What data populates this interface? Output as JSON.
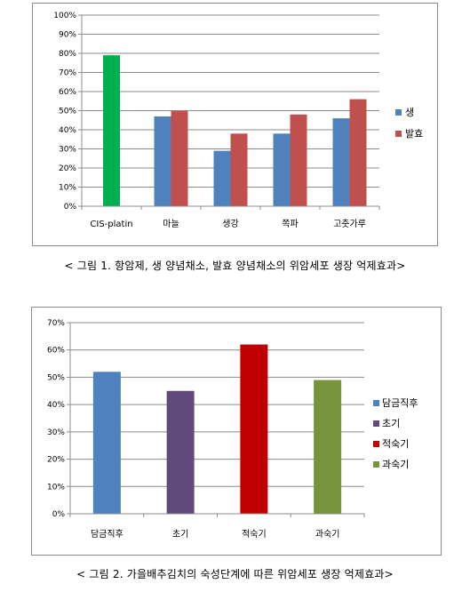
{
  "captions": {
    "figure1": "< 그림 1. 항암제, 생 양념채소, 발효 양념채소의 위암세포 생장 억제효과>",
    "figure2": "< 그림 2. 가을배추김치의 숙성단계에 따른 위암세포 생장 억제효과>"
  },
  "chart_data": [
    {
      "type": "bar",
      "title": "",
      "xlabel": "",
      "ylabel": "",
      "categories": [
        "CIS-platin",
        "마늘",
        "생강",
        "쪽파",
        "고춧가루"
      ],
      "ylim": [
        0,
        100
      ],
      "yticks": [
        "0%",
        "10%",
        "20%",
        "30%",
        "40%",
        "50%",
        "60%",
        "70%",
        "80%",
        "90%",
        "100%"
      ],
      "grid": true,
      "legend_position": "right",
      "special_bar": {
        "category": "CIS-platin",
        "value": 79,
        "color": "#00b050"
      },
      "series": [
        {
          "name": "생",
          "color": "#4f81bd",
          "values": [
            null,
            47,
            29,
            38,
            46
          ]
        },
        {
          "name": "발효",
          "color": "#c0504d",
          "values": [
            null,
            50,
            38,
            48,
            56
          ]
        }
      ]
    },
    {
      "type": "bar",
      "title": "",
      "xlabel": "",
      "ylabel": "",
      "categories": [
        "담금직후",
        "초기",
        "적숙기",
        "과숙기"
      ],
      "ylim": [
        0,
        70
      ],
      "yticks": [
        "0%",
        "10%",
        "20%",
        "30%",
        "40%",
        "50%",
        "60%",
        "70%"
      ],
      "grid": true,
      "legend_position": "right",
      "values": [
        52,
        45,
        62,
        49
      ],
      "colors": [
        "#4f81bd",
        "#604a7b",
        "#c00000",
        "#77933c"
      ],
      "legend": [
        "담금직후",
        "초기",
        "적숙기",
        "과숙기"
      ]
    }
  ]
}
